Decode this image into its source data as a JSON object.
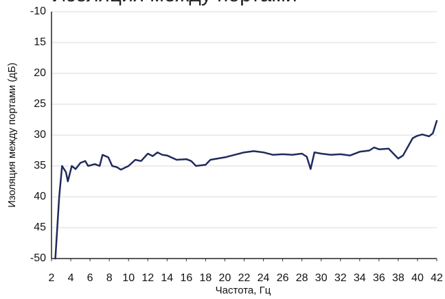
{
  "chart_data": {
    "type": "line",
    "title": "Изоляция между портами",
    "x_label": "Частота, Гц",
    "y_label": "Изоляция между портами (дБ)",
    "x": [
      2.4,
      2.8,
      3.1,
      3.5,
      3.7,
      4.1,
      4.5,
      5.0,
      5.5,
      5.8,
      6.5,
      7.0,
      7.3,
      7.9,
      8.3,
      8.8,
      9.2,
      10,
      10.7,
      11.3,
      12,
      12.5,
      13,
      13.5,
      14,
      15,
      16,
      16.5,
      17,
      18,
      18.5,
      20,
      22,
      23,
      24,
      25,
      26,
      27,
      28,
      28.5,
      28.9,
      29.3,
      30,
      31,
      32,
      33,
      34,
      35,
      35.5,
      36,
      37,
      38,
      38.5,
      39.5,
      40,
      40.5,
      41.2,
      41.6,
      42
    ],
    "series": [
      {
        "name": "Изоляция",
        "color": "#1f2a5c",
        "values": [
          -50,
          -40,
          -35,
          -36,
          -37.5,
          -35,
          -35.5,
          -34.5,
          -34.2,
          -35,
          -34.7,
          -35,
          -33.2,
          -33.6,
          -35,
          -35.2,
          -35.6,
          -35,
          -34,
          -34.2,
          -33,
          -33.4,
          -32.8,
          -33.2,
          -33.3,
          -34,
          -33.9,
          -34.2,
          -35,
          -34.8,
          -34,
          -33.6,
          -32.8,
          -32.6,
          -32.8,
          -33.2,
          -33.1,
          -33.2,
          -33,
          -33.5,
          -35.5,
          -32.8,
          -33,
          -33.2,
          -33.1,
          -33.3,
          -32.7,
          -32.5,
          -32,
          -32.3,
          -32.2,
          -33.8,
          -33.3,
          -30.5,
          -30.1,
          -29.9,
          -30.2,
          -29.7,
          -27.7
        ]
      }
    ],
    "xlim": [
      2,
      42
    ],
    "xticks": [
      2,
      4,
      6,
      8,
      10,
      12,
      14,
      16,
      18,
      20,
      22,
      24,
      26,
      28,
      30,
      32,
      34,
      36,
      38,
      40,
      42
    ],
    "ylim": [
      -50,
      -10
    ],
    "yticks": [
      -10,
      {
        "value": -15,
        "label": "15"
      },
      {
        "value": -20,
        "label": "20"
      },
      {
        "value": -25,
        "label": "25"
      },
      {
        "value": -30,
        "label": "30"
      },
      {
        "value": -35,
        "label": "35"
      },
      {
        "value": -40,
        "label": "40"
      },
      {
        "value": -45,
        "label": "45"
      },
      -50
    ],
    "grid": true
  }
}
